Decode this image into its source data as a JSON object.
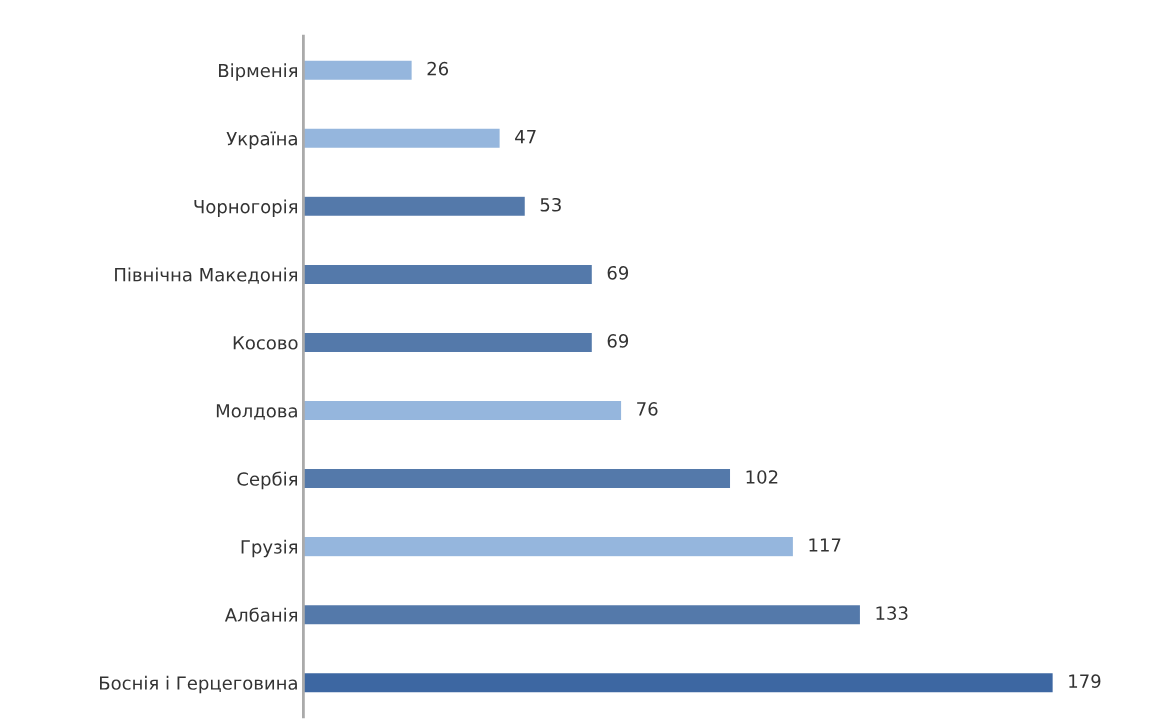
{
  "chart_data": {
    "type": "bar",
    "orientation": "horizontal",
    "categories": [
      "Вірменія",
      "Україна",
      "Чорногорія",
      "Північна Македонія",
      "Косово",
      "Молдова",
      "Сербія",
      "Грузія",
      "Албанія",
      "Боснія і Герцеговина"
    ],
    "values": [
      26,
      47,
      53,
      69,
      69,
      76,
      102,
      117,
      133,
      179
    ],
    "colors": [
      "#95b6dd",
      "#95b6dd",
      "#5479aa",
      "#5479aa",
      "#5479aa",
      "#95b6dd",
      "#5479aa",
      "#95b6dd",
      "#5479aa",
      "#3d67a2"
    ],
    "data_labels": true,
    "grid": false,
    "legend": false,
    "tick_labels": "y"
  }
}
